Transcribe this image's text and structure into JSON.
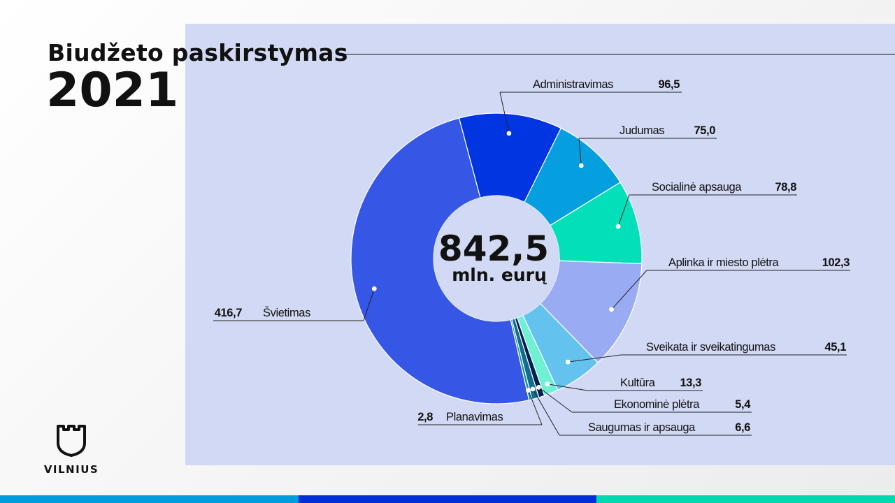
{
  "header": {
    "title": "Biudžeto paskirstymas",
    "year": "2021"
  },
  "brand": {
    "name": "VILNIUS",
    "logo_icon": "castle-tower-icon"
  },
  "colors": {
    "panel": "#d2d9f4",
    "bar_left": "#009cde",
    "bar_mid": "#002ed8",
    "bar_right": "#00d8b0"
  },
  "chart_data": {
    "type": "pie",
    "variant": "donut",
    "center_value": "842,5",
    "center_unit": "mln. eurų",
    "slices": [
      {
        "label": "Administravimas",
        "value_text": "96,5",
        "value": 96.5,
        "color": "#0035e0"
      },
      {
        "label": "Judumas",
        "value_text": "75,0",
        "value": 75.0,
        "color": "#059fe0"
      },
      {
        "label": "Socialinė apsauga",
        "value_text": "78,8",
        "value": 78.8,
        "color": "#03e0b9"
      },
      {
        "label": "Aplinka ir miesto plėtra",
        "value_text": "102,3",
        "value": 102.3,
        "color": "#99abf2"
      },
      {
        "label": "Sveikata ir sveikatingumas",
        "value_text": "45,1",
        "value": 45.1,
        "color": "#64c3ee"
      },
      {
        "label": "Kultūra",
        "value_text": "13,3",
        "value": 13.3,
        "color": "#6ff0d5"
      },
      {
        "label": "Ekonominė plėtra",
        "value_text": "5,4",
        "value": 5.4,
        "color": "#03204f"
      },
      {
        "label": "Saugumas ir apsauga",
        "value_text": "6,6",
        "value": 6.6,
        "color": "#0f6e8f"
      },
      {
        "label": "Planavimas",
        "value_text": "2,8",
        "value": 2.8,
        "color": "#1e9488"
      },
      {
        "label": "Švietimas",
        "value_text": "416,7",
        "value": 416.7,
        "color": "#3656e6"
      }
    ]
  }
}
